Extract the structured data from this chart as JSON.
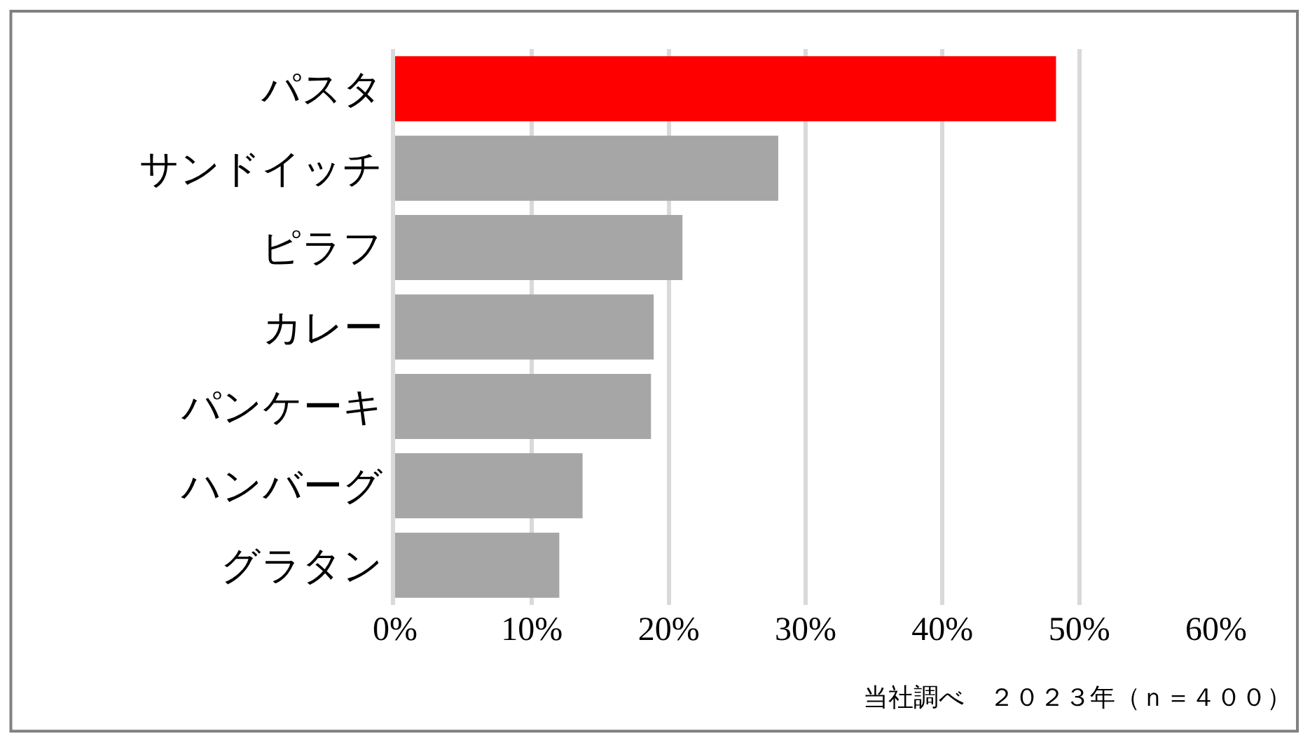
{
  "chart_data": {
    "type": "bar",
    "orientation": "horizontal",
    "categories": [
      "パスタ",
      "サンドイッチ",
      "ピラフ",
      "カレー",
      "パンケーキ",
      "ハンバーグ",
      "グラタン"
    ],
    "values": [
      48.3,
      28.0,
      21.0,
      18.9,
      18.7,
      13.7,
      12.0
    ],
    "colors": [
      "#ff0000",
      "#a6a6a6",
      "#a6a6a6",
      "#a6a6a6",
      "#a6a6a6",
      "#a6a6a6",
      "#a6a6a6"
    ],
    "xlim": [
      0,
      60
    ],
    "xticks": [
      {
        "value": 0,
        "label": "0%"
      },
      {
        "value": 10,
        "label": "10%"
      },
      {
        "value": 20,
        "label": "20%"
      },
      {
        "value": 30,
        "label": "30%"
      },
      {
        "value": 40,
        "label": "40%"
      },
      {
        "value": 50,
        "label": "50%"
      },
      {
        "value": 60,
        "label": "60%"
      }
    ],
    "grid": "x",
    "annotations": [
      "当社調べ　２０２３年（ｎ＝４００）"
    ]
  }
}
